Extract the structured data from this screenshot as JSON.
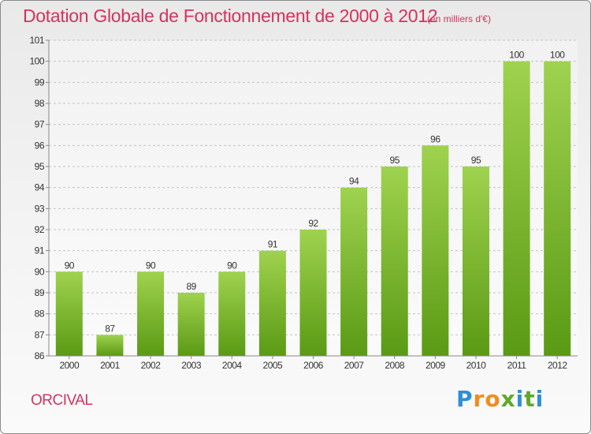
{
  "title": "Dotation Globale de Fonctionnement de 2000 à 2012",
  "unit": "(en milliers d'€)",
  "commune": "ORCIVAL",
  "logo": {
    "letters": [
      "P",
      "r",
      "o",
      "x",
      "i",
      "t",
      "i"
    ],
    "colors": [
      "#2e8fd6",
      "#f08c1e",
      "#f08c1e",
      "#5fa82d",
      "#2e8fd6",
      "#5fa82d",
      "#2e8fd6"
    ]
  },
  "colors": {
    "bar_top": "#9fd24f",
    "bar_bottom": "#5a9a14",
    "title": "#d6325c"
  },
  "chart_data": {
    "type": "bar",
    "title": "Dotation Globale de Fonctionnement de 2000 à 2012",
    "xlabel": "",
    "ylabel": "",
    "categories": [
      "2000",
      "2001",
      "2002",
      "2003",
      "2004",
      "2005",
      "2006",
      "2007",
      "2008",
      "2009",
      "2010",
      "2011",
      "2012"
    ],
    "values": [
      90,
      87,
      90,
      89,
      90,
      91,
      92,
      94,
      95,
      96,
      95,
      100,
      100
    ],
    "value_labels": [
      "90",
      "87",
      "90",
      "89",
      "90",
      "91",
      "92",
      "94",
      "95",
      "96",
      "95",
      "100",
      "100"
    ],
    "ylim": [
      86,
      101
    ],
    "yticks": [
      86,
      87,
      88,
      89,
      90,
      91,
      92,
      93,
      94,
      95,
      96,
      97,
      98,
      99,
      100,
      101
    ],
    "grid": true
  }
}
